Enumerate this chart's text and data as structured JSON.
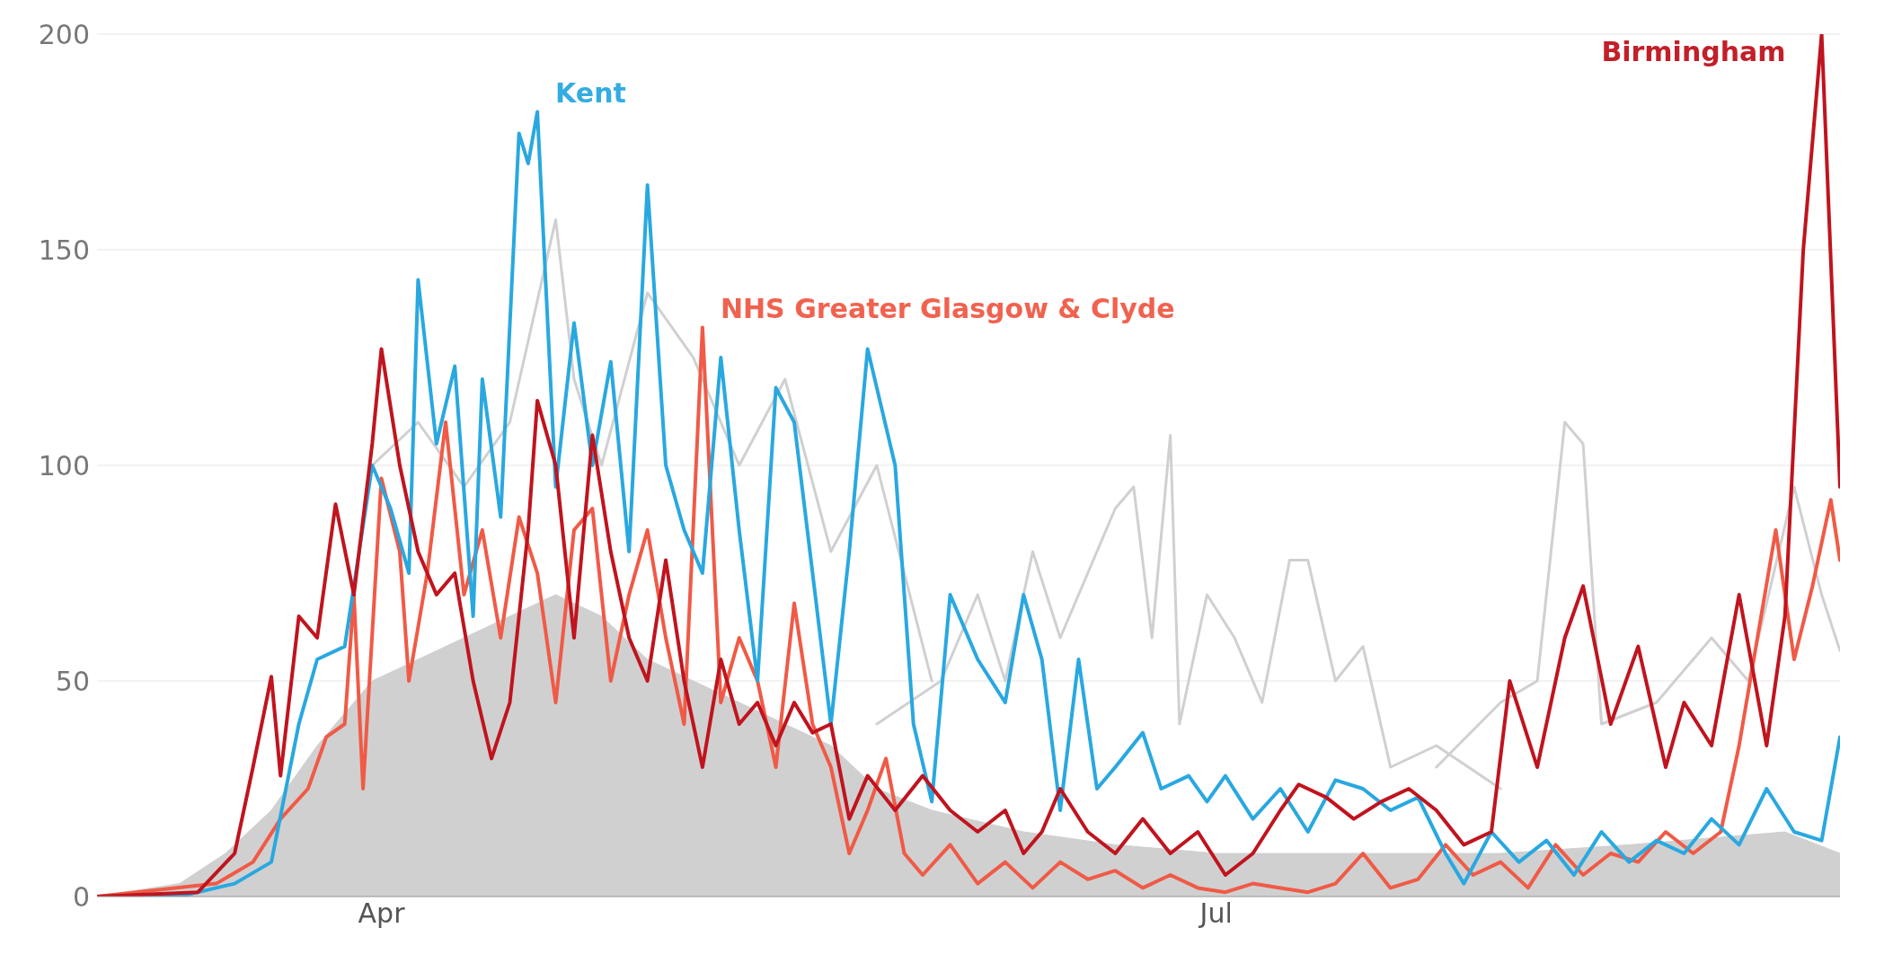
{
  "chart_data": {
    "type": "line",
    "xlim": [
      "--03-01",
      "--09-07"
    ],
    "xticks": [
      {
        "value": "--04-01",
        "label": "Apr"
      },
      {
        "value": "--07-01",
        "label": "Jul"
      }
    ],
    "ylim": [
      0,
      200
    ],
    "yticks": [
      0,
      50,
      100,
      150,
      200
    ],
    "grid": "y",
    "marker": "none",
    "line_style": "solid",
    "series": [
      {
        "type": "area",
        "color": "#d0d0d0",
        "x": [
          "--03-01",
          "--03-10",
          "--03-15",
          "--03-20",
          "--03-25",
          "--03-31",
          "--04-05",
          "--04-10",
          "--04-15",
          "--04-20",
          "--04-25",
          "--04-30",
          "--05-05",
          "--05-10",
          "--05-15",
          "--05-20",
          "--05-25",
          "--05-31",
          "--06-10",
          "--06-20",
          "--07-01",
          "--07-15",
          "--08-01",
          "--08-15",
          "--09-01",
          "--09-07"
        ],
        "values": [
          0,
          3,
          10,
          20,
          35,
          50,
          55,
          60,
          65,
          70,
          65,
          55,
          50,
          45,
          40,
          35,
          25,
          20,
          15,
          12,
          10,
          10,
          10,
          12,
          15,
          10
        ]
      },
      {
        "color": "#d0d0d0",
        "x": [
          "--03-31",
          "--04-05",
          "--04-10",
          "--04-15",
          "--04-20",
          "--04-22",
          "--04-25",
          "--04-30",
          "--05-05",
          "--05-10",
          "--05-15",
          "--05-20",
          "--05-25",
          "--05-31"
        ],
        "values": [
          100,
          110,
          95,
          110,
          157,
          120,
          100,
          140,
          125,
          100,
          120,
          80,
          100,
          50
        ]
      },
      {
        "color": "#d0d0d0",
        "x": [
          "--05-25",
          "--06-01",
          "--06-05",
          "--06-08",
          "--06-11",
          "--06-14",
          "--06-17",
          "--06-20",
          "--06-22",
          "--06-24",
          "--06-26",
          "--06-27",
          "--06-30",
          "--07-03",
          "--07-06",
          "--07-09",
          "--07-11",
          "--07-14",
          "--07-17",
          "--07-20",
          "--07-25",
          "--08-01"
        ],
        "values": [
          40,
          50,
          70,
          50,
          80,
          60,
          75,
          90,
          95,
          60,
          107,
          40,
          70,
          60,
          45,
          78,
          78,
          50,
          58,
          30,
          35,
          25
        ]
      },
      {
        "color": "#d0d0d0",
        "x": [
          "--07-25",
          "--08-01",
          "--08-05",
          "--08-08",
          "--08-10",
          "--08-12",
          "--08-18",
          "--08-24",
          "--08-28",
          "--09-02",
          "--09-05",
          "--09-07"
        ],
        "values": [
          30,
          45,
          50,
          110,
          105,
          40,
          45,
          60,
          50,
          95,
          70,
          57
        ]
      },
      {
        "name": "NHS Greater Glasgow & Clyde",
        "color": "#f05a46",
        "x": [
          "--03-01",
          "--03-14",
          "--03-18",
          "--03-21",
          "--03-24",
          "--03-26",
          "--03-28",
          "--03-29",
          "--03-30",
          "--04-01",
          "--04-03",
          "--04-04",
          "--04-06",
          "--04-08",
          "--04-10",
          "--04-12",
          "--04-14",
          "--04-16",
          "--04-18",
          "--04-20",
          "--04-22",
          "--04-24",
          "--04-26",
          "--04-28",
          "--04-30",
          "--05-02",
          "--05-04",
          "--05-06",
          "--05-08",
          "--05-10",
          "--05-12",
          "--05-14",
          "--05-16",
          "--05-18",
          "--05-20",
          "--05-22",
          "--05-24",
          "--05-26",
          "--05-28",
          "--05-30",
          "--06-02",
          "--06-05",
          "--06-08",
          "--06-11",
          "--06-14",
          "--06-17",
          "--06-20",
          "--06-23",
          "--06-26",
          "--06-29",
          "--07-02",
          "--07-05",
          "--07-08",
          "--07-11",
          "--07-14",
          "--07-17",
          "--07-20",
          "--07-23",
          "--07-26",
          "--07-29",
          "--08-01",
          "--08-04",
          "--08-07",
          "--08-10",
          "--08-13",
          "--08-16",
          "--08-19",
          "--08-22",
          "--08-25",
          "--08-27",
          "--08-29",
          "--08-31",
          "--09-02",
          "--09-04",
          "--09-06",
          "--09-07"
        ],
        "values": [
          0,
          3,
          8,
          18,
          25,
          37,
          40,
          70,
          25,
          97,
          80,
          50,
          75,
          110,
          70,
          85,
          60,
          88,
          75,
          45,
          85,
          90,
          50,
          70,
          85,
          60,
          40,
          132,
          45,
          60,
          50,
          30,
          68,
          40,
          30,
          10,
          20,
          32,
          10,
          5,
          12,
          3,
          8,
          2,
          8,
          4,
          6,
          2,
          5,
          2,
          1,
          3,
          2,
          1,
          3,
          10,
          2,
          4,
          12,
          5,
          8,
          2,
          12,
          5,
          10,
          8,
          15,
          10,
          15,
          35,
          60,
          85,
          55,
          72,
          92,
          78
        ]
      },
      {
        "name": "Kent",
        "color": "#29a8e0",
        "x": [
          "--03-01",
          "--03-10",
          "--03-16",
          "--03-20",
          "--03-23",
          "--03-25",
          "--03-28",
          "--03-31",
          "--04-02",
          "--04-04",
          "--04-05",
          "--04-07",
          "--04-09",
          "--04-11",
          "--04-12",
          "--04-14",
          "--04-16",
          "--04-17",
          "--04-18",
          "--04-20",
          "--04-22",
          "--04-24",
          "--04-26",
          "--04-28",
          "--04-30",
          "--05-02",
          "--05-04",
          "--05-06",
          "--05-08",
          "--05-10",
          "--05-12",
          "--05-14",
          "--05-16",
          "--05-18",
          "--05-20",
          "--05-22",
          "--05-24",
          "--05-27",
          "--05-29",
          "--05-31",
          "--06-02",
          "--06-05",
          "--06-08",
          "--06-10",
          "--06-12",
          "--06-14",
          "--06-16",
          "--06-18",
          "--06-20",
          "--06-23",
          "--06-25",
          "--06-28",
          "--06-30",
          "--07-02",
          "--07-05",
          "--07-08",
          "--07-11",
          "--07-14",
          "--07-17",
          "--07-20",
          "--07-23",
          "--07-26",
          "--07-28",
          "--07-31",
          "--08-03",
          "--08-06",
          "--08-09",
          "--08-12",
          "--08-15",
          "--08-18",
          "--08-21",
          "--08-24",
          "--08-27",
          "--08-30",
          "--09-02",
          "--09-05",
          "--09-07"
        ],
        "values": [
          0,
          0,
          3,
          8,
          40,
          55,
          58,
          100,
          90,
          75,
          143,
          105,
          123,
          65,
          120,
          88,
          177,
          170,
          182,
          95,
          133,
          100,
          124,
          80,
          165,
          100,
          85,
          75,
          125,
          85,
          50,
          118,
          110,
          75,
          40,
          80,
          127,
          100,
          40,
          22,
          70,
          55,
          45,
          70,
          55,
          20,
          55,
          25,
          30,
          38,
          25,
          28,
          22,
          28,
          18,
          25,
          15,
          27,
          25,
          20,
          23,
          10,
          3,
          15,
          8,
          13,
          5,
          15,
          8,
          13,
          10,
          18,
          12,
          25,
          15,
          13,
          37
        ]
      },
      {
        "name": "Birmingham",
        "color": "#c0141e",
        "x": [
          "--03-01",
          "--03-12",
          "--03-16",
          "--03-18",
          "--03-20",
          "--03-21",
          "--03-23",
          "--03-25",
          "--03-27",
          "--03-29",
          "--03-31",
          "--04-01",
          "--04-03",
          "--04-05",
          "--04-07",
          "--04-09",
          "--04-11",
          "--04-13",
          "--04-15",
          "--04-17",
          "--04-18",
          "--04-20",
          "--04-22",
          "--04-24",
          "--04-26",
          "--04-28",
          "--04-30",
          "--05-02",
          "--05-04",
          "--05-06",
          "--05-08",
          "--05-10",
          "--05-12",
          "--05-14",
          "--05-16",
          "--05-18",
          "--05-20",
          "--05-22",
          "--05-24",
          "--05-27",
          "--05-30",
          "--06-02",
          "--06-05",
          "--06-08",
          "--06-10",
          "--06-12",
          "--06-14",
          "--06-17",
          "--06-20",
          "--06-23",
          "--06-26",
          "--06-29",
          "--07-02",
          "--07-05",
          "--07-08",
          "--07-10",
          "--07-13",
          "--07-16",
          "--07-19",
          "--07-22",
          "--07-25",
          "--07-28",
          "--07-31",
          "--08-02",
          "--08-05",
          "--08-08",
          "--08-10",
          "--08-13",
          "--08-16",
          "--08-19",
          "--08-21",
          "--08-24",
          "--08-27",
          "--08-30",
          "--09-01",
          "--09-03",
          "--09-05",
          "--09-07"
        ],
        "values": [
          0,
          1,
          10,
          30,
          51,
          28,
          65,
          60,
          91,
          70,
          105,
          127,
          100,
          80,
          70,
          75,
          50,
          32,
          45,
          85,
          115,
          100,
          60,
          107,
          80,
          60,
          50,
          78,
          50,
          30,
          55,
          40,
          45,
          35,
          45,
          38,
          40,
          18,
          28,
          20,
          28,
          20,
          15,
          20,
          10,
          15,
          25,
          15,
          10,
          18,
          10,
          15,
          5,
          10,
          20,
          26,
          23,
          18,
          22,
          25,
          20,
          12,
          15,
          50,
          30,
          60,
          72,
          40,
          58,
          30,
          45,
          35,
          70,
          35,
          65,
          150,
          200,
          95
        ]
      }
    ]
  }
}
